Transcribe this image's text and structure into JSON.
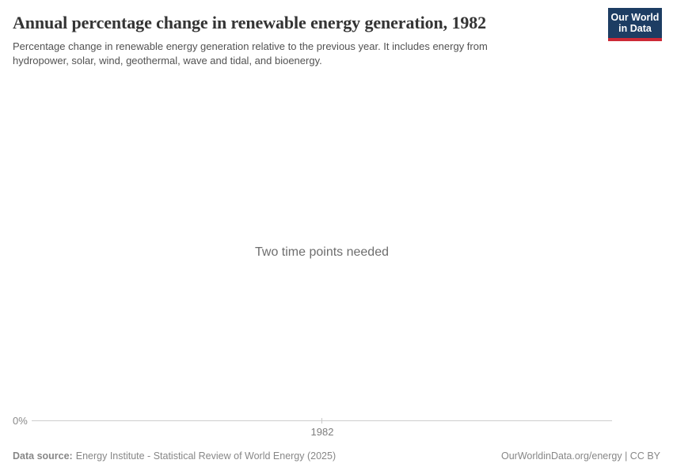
{
  "header": {
    "title": "Annual percentage change in renewable energy generation, 1982",
    "subtitle_line1": "Percentage change in renewable energy generation relative to the previous year. It includes energy from",
    "subtitle_line2": "hydropower, solar, wind, geothermal, wave and tidal, and bioenergy.",
    "logo": {
      "line1": "Our World",
      "line2": "in Data",
      "bg_color": "#1d3d63",
      "accent_color": "#cc2936"
    }
  },
  "chart": {
    "empty_message": "Two time points needed",
    "y_axis": {
      "tick_label": "0%"
    },
    "x_axis": {
      "tick_label": "1982"
    },
    "axis_line_color": "#cdcdcd"
  },
  "chart_data": {
    "type": "line",
    "title": "Annual percentage change in renewable energy generation, 1982",
    "x": [
      1982
    ],
    "series": [],
    "x_tick_labels": [
      "1982"
    ],
    "y_tick_labels": [
      "0%"
    ],
    "ylim_note": "only 0% baseline shown",
    "grid": false,
    "legend": "none",
    "annotations": [
      "Two time points needed"
    ]
  },
  "footer": {
    "source_label": "Data source:",
    "source_text": "Energy Institute - Statistical Review of World Energy (2025)",
    "attribution": "OurWorldinData.org/energy | CC BY"
  }
}
